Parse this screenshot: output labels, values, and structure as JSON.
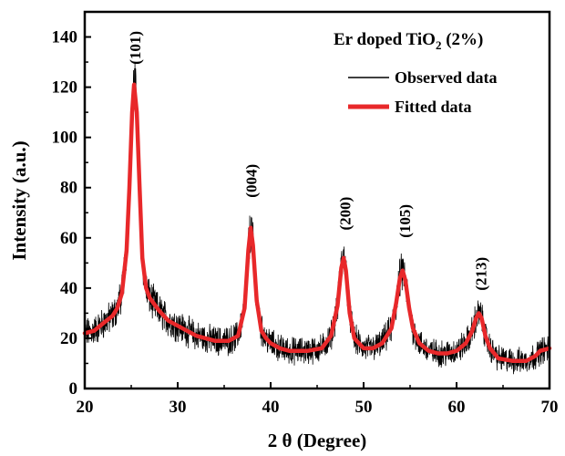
{
  "chart_data": {
    "type": "line",
    "title": "Er doped TiO",
    "title_sub": "2",
    "title_tail": " (2%)",
    "xlabel": "2 θ (Degree)",
    "ylabel": "Intensity (a.u.)",
    "xlim": [
      20,
      70
    ],
    "ylim": [
      0,
      150
    ],
    "xticks": [
      20,
      30,
      40,
      50,
      60,
      70
    ],
    "yticks": [
      0,
      20,
      40,
      60,
      80,
      100,
      120,
      140
    ],
    "grid": false,
    "legend_position": "top-right",
    "series": [
      {
        "name": "Observed data",
        "color": "#000000",
        "style": "noisy-line"
      },
      {
        "name": "Fitted data",
        "color": "#e8282a",
        "style": "thick-line",
        "x": [
          20,
          21,
          22,
          23,
          23.5,
          24,
          24.5,
          24.8,
          25.1,
          25.3,
          25.6,
          25.9,
          26.2,
          26.6,
          27,
          28,
          29,
          30,
          32,
          34,
          35.5,
          36.5,
          37.2,
          37.6,
          37.85,
          38.1,
          38.5,
          39,
          39.5,
          40,
          41,
          42,
          44,
          45.5,
          46.5,
          47.2,
          47.6,
          47.85,
          48.1,
          48.5,
          49,
          50,
          51,
          52,
          53,
          53.5,
          53.9,
          54.2,
          54.5,
          54.9,
          55.3,
          56,
          57,
          58,
          59,
          60,
          61,
          61.7,
          62.1,
          62.4,
          62.7,
          63.1,
          63.6,
          64.5,
          66,
          67.5,
          68.5,
          69,
          70
        ],
        "y": [
          22,
          23,
          26,
          29,
          32,
          38,
          55,
          80,
          110,
          121,
          110,
          80,
          52,
          40,
          36,
          31,
          27,
          25,
          21,
          19,
          19,
          21,
          32,
          55,
          64,
          57,
          35,
          23,
          20,
          18,
          16,
          15,
          15,
          16,
          21,
          33,
          48,
          52,
          47,
          30,
          20,
          16,
          16,
          18,
          24,
          34,
          44,
          47,
          43,
          32,
          24,
          18,
          15,
          14,
          14,
          15,
          18,
          23,
          28,
          30,
          28,
          21,
          16,
          12,
          11,
          11,
          13,
          15,
          16
        ]
      }
    ],
    "annotations": [
      {
        "text": "(101)",
        "x": 25.4,
        "y": 129
      },
      {
        "text": "(004)",
        "x": 37.9,
        "y": 76
      },
      {
        "text": "(200)",
        "x": 48.0,
        "y": 63
      },
      {
        "text": "(105)",
        "x": 54.4,
        "y": 60
      },
      {
        "text": "(213)",
        "x": 62.6,
        "y": 39
      }
    ]
  }
}
